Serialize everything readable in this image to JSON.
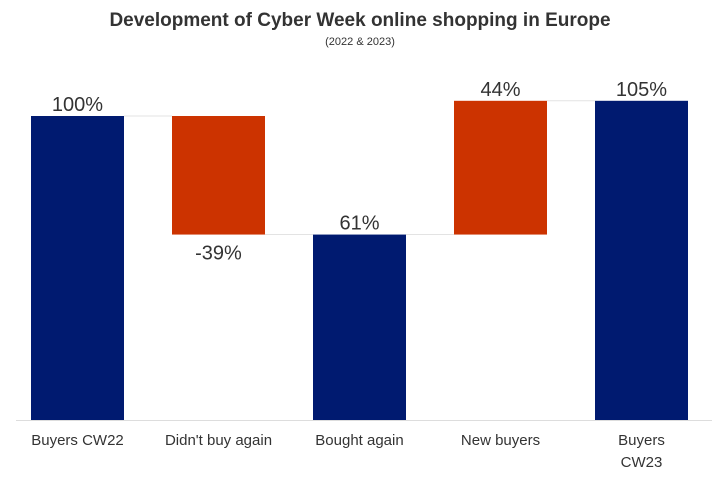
{
  "chart_data": {
    "type": "waterfall",
    "title": "Development of Cyber Week online shopping in Europe",
    "subtitle": "(2022 & 2023)",
    "categories": [
      "Buyers CW22",
      "Didn't buy again",
      "Bought again",
      "New buyers",
      "Buyers CW23"
    ],
    "values": [
      100,
      -39,
      61,
      44,
      105
    ],
    "data_labels": [
      "100%",
      "-39%",
      "61%",
      "44%",
      "105%"
    ],
    "bar_ranges": [
      [
        0,
        100
      ],
      [
        61,
        100
      ],
      [
        0,
        61
      ],
      [
        61,
        105
      ],
      [
        0,
        105
      ]
    ],
    "kinds": [
      "total",
      "change",
      "total",
      "change",
      "total"
    ],
    "ylim": [
      0,
      105
    ],
    "grid": false,
    "colors": {
      "total": "#001A70",
      "change": "#CC3300",
      "connector": "#e3e3e3",
      "axis": "#dddddd",
      "text": "#333333"
    }
  }
}
